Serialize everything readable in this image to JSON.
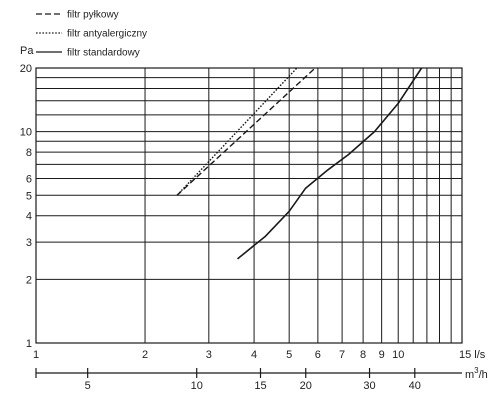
{
  "chart_data": {
    "type": "line",
    "x_scale": "log",
    "y_scale": "log",
    "x_unit": "l/s",
    "x2_unit": "m3/h",
    "y_unit": "Pa",
    "xlim": [
      1,
      15
    ],
    "ylim": [
      1,
      20
    ],
    "x_ticks": [
      1,
      2,
      3,
      4,
      5,
      6,
      7,
      8,
      9,
      10,
      15
    ],
    "x_tick_labels": [
      "1",
      "2",
      "3",
      "4",
      "5",
      "6",
      "7",
      "8",
      "9",
      "10",
      "15 l/s"
    ],
    "x2_ticks": [
      5,
      10,
      15,
      20,
      30,
      40
    ],
    "x2_tick_labels": [
      "5",
      "10",
      "15",
      "20",
      "30",
      "40"
    ],
    "y_ticks": [
      1,
      2,
      3,
      4,
      5,
      6,
      8,
      10,
      20
    ],
    "y_tick_labels": [
      "1",
      "2",
      "3",
      "4",
      "5",
      "6",
      "8",
      "10",
      "20"
    ],
    "grid": true,
    "legend_position": "top-left",
    "series": [
      {
        "name": "filtr pyłkowy",
        "style": "dashed",
        "x": [
          2.45,
          5.9
        ],
        "y": [
          5.0,
          20.0
        ]
      },
      {
        "name": "filtr antyalergiczny",
        "style": "dotted",
        "x": [
          2.45,
          5.25
        ],
        "y": [
          5.0,
          20.0
        ]
      },
      {
        "name": "filtr standardowy",
        "style": "solid",
        "x": [
          3.6,
          4.3,
          5.0,
          5.55,
          6.4,
          7.3,
          8.6,
          10.0,
          11.6
        ],
        "y": [
          2.5,
          3.2,
          4.2,
          5.4,
          6.6,
          7.8,
          10.0,
          13.6,
          20.0
        ]
      }
    ],
    "colors": {
      "line": "#1a1a1a",
      "grid": "#1a1a1a",
      "text": "#222222"
    }
  }
}
